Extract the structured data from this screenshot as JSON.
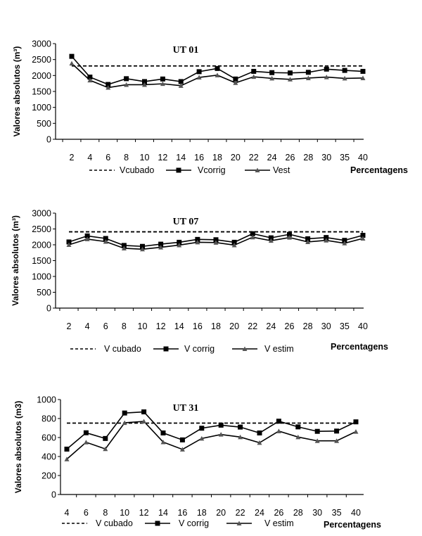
{
  "chart_data": [
    {
      "type": "line",
      "title": "UT 01",
      "ylabel": "Valores absolutos (m³)",
      "xlabel": "Percentagens",
      "categories": [
        "2",
        "4",
        "6",
        "8",
        "10",
        "12",
        "14",
        "16",
        "18",
        "20",
        "22",
        "24",
        "26",
        "28",
        "30",
        "35",
        "40"
      ],
      "ylim": [
        0,
        3000
      ],
      "yticks": [
        "0",
        "500",
        "1000",
        "1500",
        "2000",
        "2500",
        "3000"
      ],
      "grid": false,
      "legend": "bottom",
      "series": [
        {
          "name": "Vcubado",
          "style": "dashed",
          "values": [
            2300,
            2300,
            2300,
            2300,
            2300,
            2300,
            2300,
            2300,
            2300,
            2300,
            2300,
            2300,
            2300,
            2300,
            2300,
            2300,
            2300
          ]
        },
        {
          "name": "Vcorrig",
          "style": "square",
          "values": [
            2600,
            1950,
            1720,
            1900,
            1810,
            1890,
            1810,
            2120,
            2220,
            1890,
            2130,
            2090,
            2080,
            2100,
            2200,
            2160,
            2130
          ]
        },
        {
          "name": "Vest",
          "style": "triangle",
          "values": [
            2380,
            1850,
            1620,
            1710,
            1710,
            1740,
            1680,
            1940,
            2010,
            1770,
            1960,
            1910,
            1880,
            1920,
            1950,
            1910,
            1920
          ]
        }
      ]
    },
    {
      "type": "line",
      "title": "UT 07",
      "ylabel": "Valores absolutos (m³)",
      "xlabel": "Percentagens",
      "categories": [
        "2",
        "4",
        "6",
        "8",
        "10",
        "12",
        "14",
        "16",
        "18",
        "20",
        "22",
        "24",
        "26",
        "28",
        "30",
        "35",
        "40"
      ],
      "ylim": [
        0,
        3000
      ],
      "yticks": [
        "0",
        "500",
        "1000",
        "1500",
        "2000",
        "2500",
        "3000"
      ],
      "grid": false,
      "legend": "bottom",
      "series": [
        {
          "name": "V cubado",
          "style": "dashed",
          "values": [
            2410,
            2410,
            2410,
            2410,
            2410,
            2410,
            2410,
            2410,
            2410,
            2410,
            2410,
            2410,
            2410,
            2410,
            2410,
            2410,
            2410
          ]
        },
        {
          "name": "V corrig",
          "style": "square",
          "values": [
            2090,
            2280,
            2200,
            1980,
            1950,
            2020,
            2080,
            2170,
            2160,
            2080,
            2350,
            2220,
            2330,
            2190,
            2230,
            2140,
            2300
          ]
        },
        {
          "name": "V estim",
          "style": "triangle",
          "values": [
            2000,
            2180,
            2100,
            1890,
            1860,
            1920,
            1990,
            2080,
            2070,
            1990,
            2240,
            2130,
            2230,
            2090,
            2140,
            2050,
            2200
          ]
        }
      ]
    },
    {
      "type": "line",
      "title": "UT 31",
      "ylabel": "Valores absolutos (m3)",
      "xlabel": "Percentagens",
      "categories": [
        "4",
        "6",
        "8",
        "10",
        "12",
        "14",
        "16",
        "18",
        "20",
        "22",
        "24",
        "26",
        "28",
        "30",
        "35",
        "40"
      ],
      "ylim": [
        0,
        1000
      ],
      "yticks": [
        "0",
        "200",
        "400",
        "600",
        "800",
        "1000"
      ],
      "grid": false,
      "legend": "bottom",
      "series": [
        {
          "name": "V cubado",
          "style": "dashed",
          "values": [
            752,
            752,
            752,
            752,
            752,
            752,
            752,
            752,
            752,
            752,
            752,
            752,
            752,
            752,
            752,
            752
          ]
        },
        {
          "name": "V corrig",
          "style": "square",
          "values": [
            478,
            650,
            590,
            858,
            870,
            648,
            575,
            698,
            730,
            710,
            648,
            772,
            712,
            665,
            668,
            765
          ]
        },
        {
          "name": "V estim",
          "style": "triangle",
          "values": [
            372,
            550,
            480,
            755,
            770,
            552,
            475,
            590,
            632,
            605,
            545,
            668,
            605,
            565,
            565,
            662
          ]
        }
      ]
    }
  ]
}
